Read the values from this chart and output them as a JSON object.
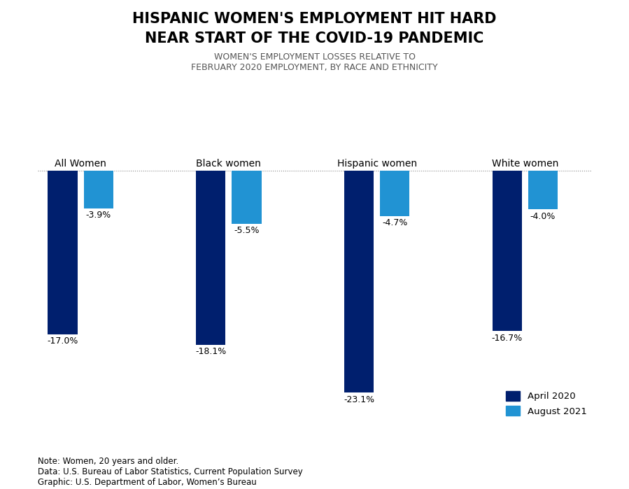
{
  "title_line1": "HISPANIC WOMEN'S EMPLOYMENT HIT HARD",
  "title_line2": "NEAR START OF THE COVID-19 PANDEMIC",
  "subtitle": "WOMEN'S EMPLOYMENT LOSSES RELATIVE TO\nFEBRUARY 2020 EMPLOYMENT, BY RACE AND ETHNICITY",
  "categories": [
    "All Women",
    "Black women",
    "Hispanic women",
    "White women"
  ],
  "april_2020": [
    -17.0,
    -18.1,
    -23.1,
    -16.7
  ],
  "august_2021": [
    -3.9,
    -5.5,
    -4.7,
    -4.0
  ],
  "april_labels": [
    "-17.0%",
    "-18.1%",
    "-23.1%",
    "-16.7%"
  ],
  "august_labels": [
    "-3.9%",
    "-5.5%",
    "-4.7%",
    "-4.0%"
  ],
  "april_color": "#001f6e",
  "august_color": "#2193d3",
  "ylim": [
    -26,
    2
  ],
  "bar_width": 0.38,
  "note_text": "Note: Women, 20 years and older.\nData: U.S. Bureau of Labor Statistics, Current Population Survey\nGraphic: U.S. Department of Labor, Women’s Bureau",
  "legend_april": "April 2020",
  "legend_august": "August 2021",
  "background_color": "#ffffff",
  "title_fontsize": 15,
  "subtitle_fontsize": 9,
  "label_fontsize": 9,
  "category_fontsize": 10,
  "note_fontsize": 8.5
}
